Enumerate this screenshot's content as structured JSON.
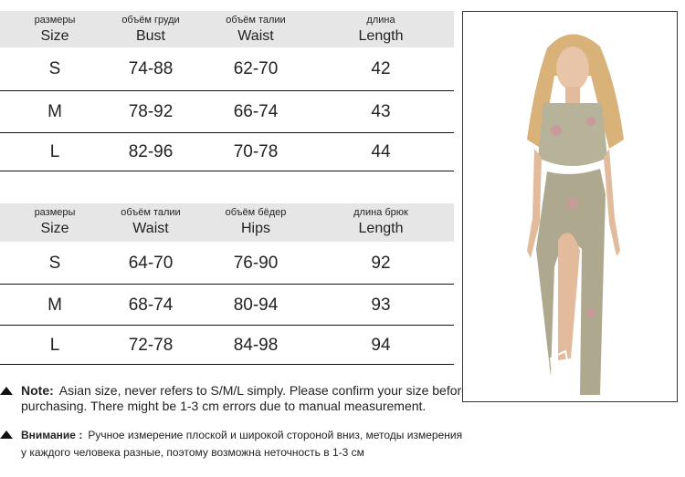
{
  "tables": [
    {
      "headers": [
        {
          "ru": "размеры",
          "en": "Size"
        },
        {
          "ru": "объём груди",
          "en": "Bust"
        },
        {
          "ru": "объём талии",
          "en": "Waist"
        },
        {
          "ru": "длина",
          "en": "Length"
        }
      ],
      "rows": [
        [
          "S",
          "74-88",
          "62-70",
          "42"
        ],
        [
          "M",
          "78-92",
          "66-74",
          "43"
        ],
        [
          "L",
          "82-96",
          "70-78",
          "44"
        ]
      ]
    },
    {
      "headers": [
        {
          "ru": "размеры",
          "en": "Size"
        },
        {
          "ru": "объём талии",
          "en": "Waist"
        },
        {
          "ru": "объём бёдер",
          "en": "Hips"
        },
        {
          "ru": "длина брюк",
          "en": "Length"
        }
      ],
      "rows": [
        [
          "S",
          "64-70",
          "76-90",
          "92"
        ],
        [
          "M",
          "68-74",
          "80-94",
          "93"
        ],
        [
          "L",
          "72-78",
          "84-98",
          "94"
        ]
      ]
    }
  ],
  "notes": [
    {
      "label": "Note:",
      "lines": [
        "Asian size, never refers to S/M/L simply. Please confirm your size before",
        "purchasing. There might be 1-3 cm errors due to manual measurement."
      ]
    },
    {
      "label": "Внимание :",
      "lines": [
        "Ручное измерение плоской и широкой стороной вниз, методы измерения",
        "у каждого человека разные, поэтому возможна неточность в 1-3 см"
      ]
    }
  ]
}
